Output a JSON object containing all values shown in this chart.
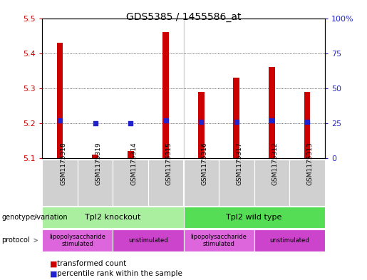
{
  "title": "GDS5385 / 1455586_at",
  "samples": [
    "GSM1175318",
    "GSM1175319",
    "GSM1175314",
    "GSM1175315",
    "GSM1175316",
    "GSM1175317",
    "GSM1175312",
    "GSM1175313"
  ],
  "transformed_counts": [
    5.43,
    5.11,
    5.12,
    5.46,
    5.29,
    5.33,
    5.36,
    5.29
  ],
  "percentile_ranks": [
    27,
    25,
    25,
    27,
    26,
    26,
    27,
    26
  ],
  "ylim_left": [
    5.1,
    5.5
  ],
  "ylim_right": [
    0,
    100
  ],
  "yticks_left": [
    5.1,
    5.2,
    5.3,
    5.4,
    5.5
  ],
  "yticks_right": [
    0,
    25,
    50,
    75,
    100
  ],
  "bar_color": "#cc0000",
  "dot_color": "#2222cc",
  "bar_width": 0.18,
  "base_value": 5.1,
  "genotype_groups": [
    {
      "label": "Tpl2 knockout",
      "start": 0,
      "end": 3,
      "color": "#aaeea0"
    },
    {
      "label": "Tpl2 wild type",
      "start": 4,
      "end": 7,
      "color": "#55dd55"
    }
  ],
  "protocol_groups": [
    {
      "label": "lipopolysaccharide\nstimulated",
      "start": 0,
      "end": 1,
      "color": "#dd66dd"
    },
    {
      "label": "unstimulated",
      "start": 2,
      "end": 3,
      "color": "#cc44cc"
    },
    {
      "label": "lipopolysaccharide\nstimulated",
      "start": 4,
      "end": 5,
      "color": "#dd66dd"
    },
    {
      "label": "unstimulated",
      "start": 6,
      "end": 7,
      "color": "#cc44cc"
    }
  ],
  "left_axis_color": "#cc0000",
  "right_axis_color": "#2222cc",
  "sample_label_bg": "#d0d0d0",
  "plot_bg_color": "#ffffff",
  "fig_bg_color": "#ffffff",
  "title_fontsize": 10,
  "tick_fontsize": 8,
  "label_fontsize": 7,
  "sample_fontsize": 6.5
}
